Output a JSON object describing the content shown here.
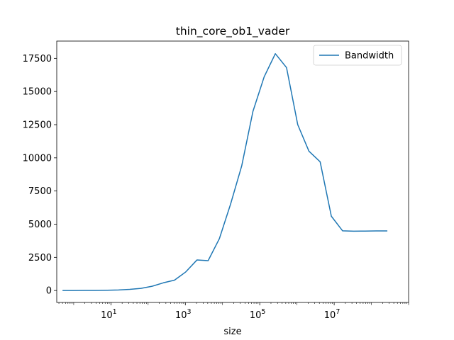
{
  "chart_data": {
    "type": "line",
    "title": "thin_core_ob1_vader",
    "xlabel": "size",
    "ylabel": "",
    "xscale": "log",
    "xlim": [
      0.35,
      1000000000
    ],
    "ylim": [
      -900,
      18800
    ],
    "grid": false,
    "legend": "top-right",
    "x_ticks": [
      {
        "value": 10,
        "mantissa": "10",
        "exponent": "1"
      },
      {
        "value": 1000,
        "mantissa": "10",
        "exponent": "3"
      },
      {
        "value": 100000,
        "mantissa": "10",
        "exponent": "5"
      },
      {
        "value": 10000000,
        "mantissa": "10",
        "exponent": "7"
      }
    ],
    "y_ticks": [
      {
        "value": 0,
        "label": "0"
      },
      {
        "value": 2500,
        "label": "2500"
      },
      {
        "value": 5000,
        "label": "5000"
      },
      {
        "value": 7500,
        "label": "7500"
      },
      {
        "value": 10000,
        "label": "10000"
      },
      {
        "value": 12500,
        "label": "12500"
      },
      {
        "value": 15000,
        "label": "15000"
      },
      {
        "value": 17500,
        "label": "17500"
      }
    ],
    "series": [
      {
        "name": "Bandwidth",
        "color": "#1f77b4",
        "x": [
          0.5,
          1,
          2,
          4,
          8,
          16,
          32,
          64,
          128,
          256,
          512,
          1024,
          2048,
          4096,
          8192,
          16384,
          32768,
          65536,
          131072,
          262144,
          524288,
          1048576,
          2097152,
          4194304,
          8388608,
          16777216,
          33554432,
          67108864,
          134217728,
          268435456
        ],
        "y": [
          2,
          3,
          6,
          11,
          22,
          43,
          86,
          160,
          320,
          580,
          780,
          1400,
          2300,
          2250,
          3900,
          6500,
          9400,
          13500,
          16100,
          17850,
          16800,
          12500,
          10500,
          9700,
          5600,
          4500,
          4470,
          4480,
          4490,
          4490
        ]
      }
    ]
  }
}
